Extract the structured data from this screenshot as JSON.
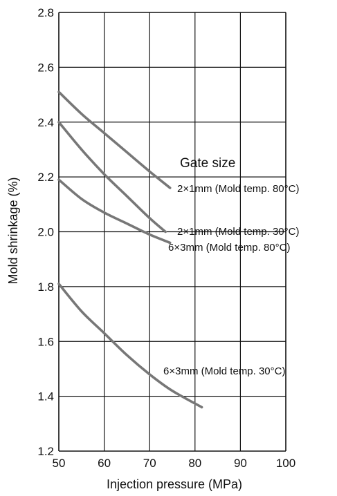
{
  "chart_data": {
    "type": "line",
    "title": "",
    "xlabel": "Injection pressure (MPa)",
    "ylabel": "Mold shrinkage (%)",
    "xlim": [
      50,
      100
    ],
    "ylim": [
      1.2,
      2.8
    ],
    "x_ticks": [
      "50",
      "60",
      "70",
      "80",
      "90",
      "100"
    ],
    "y_ticks": [
      "1.2",
      "1.4",
      "1.6",
      "1.8",
      "2.0",
      "2.2",
      "2.4",
      "2.6",
      "2.8"
    ],
    "grid": true,
    "legend_title": "Gate size",
    "series": [
      {
        "name": "2×1mm (Mold temp. 80°C)",
        "x": [
          50,
          55,
          60,
          65,
          70,
          74.5
        ],
        "y": [
          2.51,
          2.43,
          2.36,
          2.29,
          2.22,
          2.16
        ]
      },
      {
        "name": "2×1mm (Mold temp. 30°C)",
        "x": [
          50,
          55,
          60,
          65,
          70,
          73.5
        ],
        "y": [
          2.4,
          2.3,
          2.21,
          2.13,
          2.05,
          2.0
        ]
      },
      {
        "name": "6×3mm (Mold temp. 80°C)",
        "x": [
          50,
          55,
          60,
          65,
          70,
          74.5
        ],
        "y": [
          2.19,
          2.12,
          2.07,
          2.03,
          1.99,
          1.96
        ]
      },
      {
        "name": "6×3mm (Mold temp. 30°C)",
        "x": [
          50,
          55,
          60,
          65,
          70,
          75,
          81.5
        ],
        "y": [
          1.81,
          1.71,
          1.63,
          1.55,
          1.48,
          1.42,
          1.36
        ]
      }
    ],
    "colors": {
      "line": "#777777",
      "grid": "#111111",
      "text": "#111111"
    }
  }
}
